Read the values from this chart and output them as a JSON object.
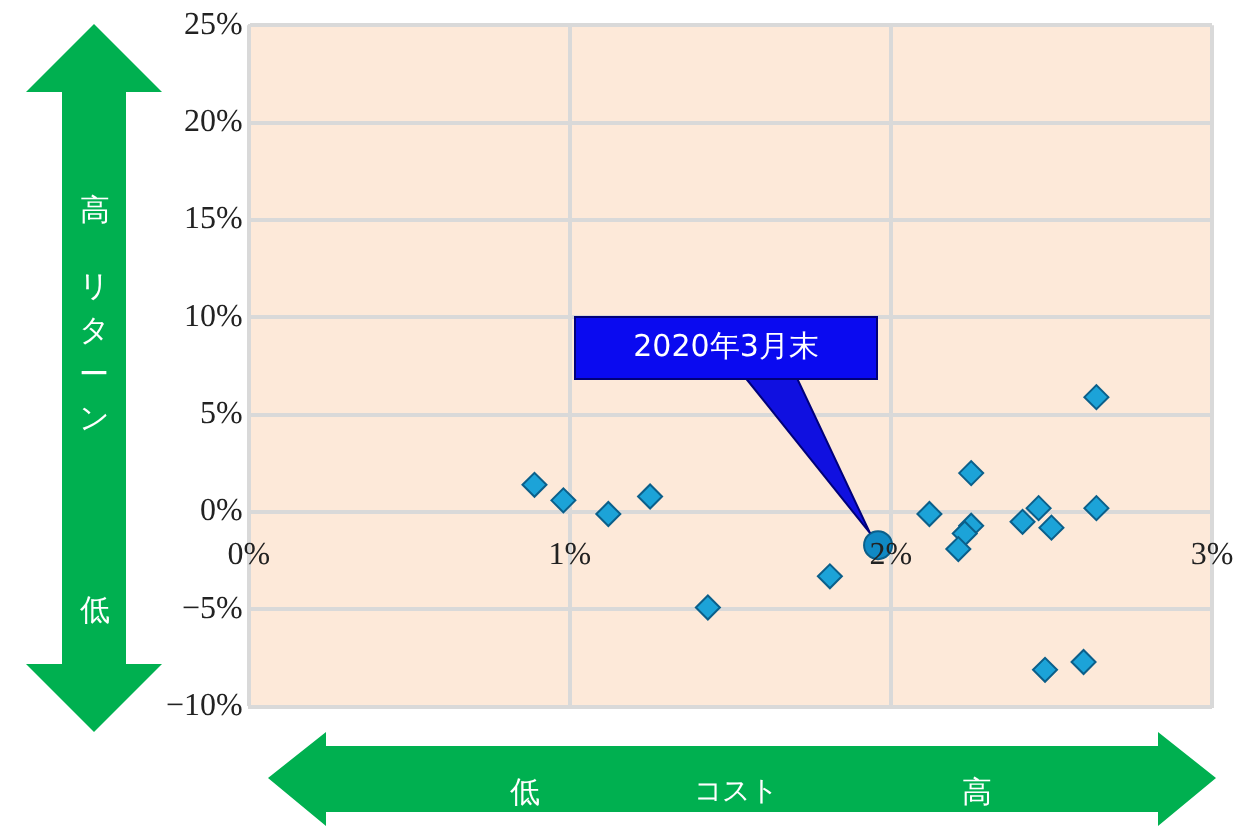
{
  "chart_data": {
    "type": "scatter",
    "xlabel": "コスト",
    "ylabel": "リターン",
    "xlim": [
      0,
      3
    ],
    "xticks": [
      {
        "value": 0,
        "label": "0%"
      },
      {
        "value": 1,
        "label": "1%"
      },
      {
        "value": 2,
        "label": "2%"
      },
      {
        "value": 3,
        "label": "3%"
      }
    ],
    "ylim": [
      -10,
      25
    ],
    "yticks": [
      {
        "value": -10,
        "label": "−10%"
      },
      {
        "value": -5,
        "label": "−5%"
      },
      {
        "value": 0,
        "label": "0%"
      },
      {
        "value": 5,
        "label": "5%"
      },
      {
        "value": 10,
        "label": "10%"
      },
      {
        "value": 15,
        "label": "15%"
      },
      {
        "value": 20,
        "label": "20%"
      },
      {
        "value": 25,
        "label": "25%"
      }
    ],
    "grid": true,
    "legend": false,
    "series": [
      {
        "color": "#1ca3d8",
        "marker": "diamond",
        "x": [
          0.89,
          0.98,
          1.12,
          1.25,
          1.43,
          1.81,
          2.12,
          2.25,
          2.25,
          2.23,
          2.21,
          2.41,
          2.46,
          2.5,
          2.64,
          2.64,
          2.48,
          2.6
        ],
        "values": [
          1.4,
          0.6,
          -0.1,
          0.8,
          -4.9,
          -3.3,
          -0.1,
          2.0,
          -0.7,
          -1.1,
          -1.9,
          -0.5,
          0.2,
          -0.8,
          5.9,
          0.2,
          -8.1,
          -7.7
        ]
      },
      {
        "color": "#1089c4",
        "marker": "circle",
        "x": [
          1.96
        ],
        "values": [
          -1.7
        ]
      }
    ],
    "annotations": [
      "2020年3月末",
      "高",
      "低",
      "低",
      "高"
    ]
  }
}
